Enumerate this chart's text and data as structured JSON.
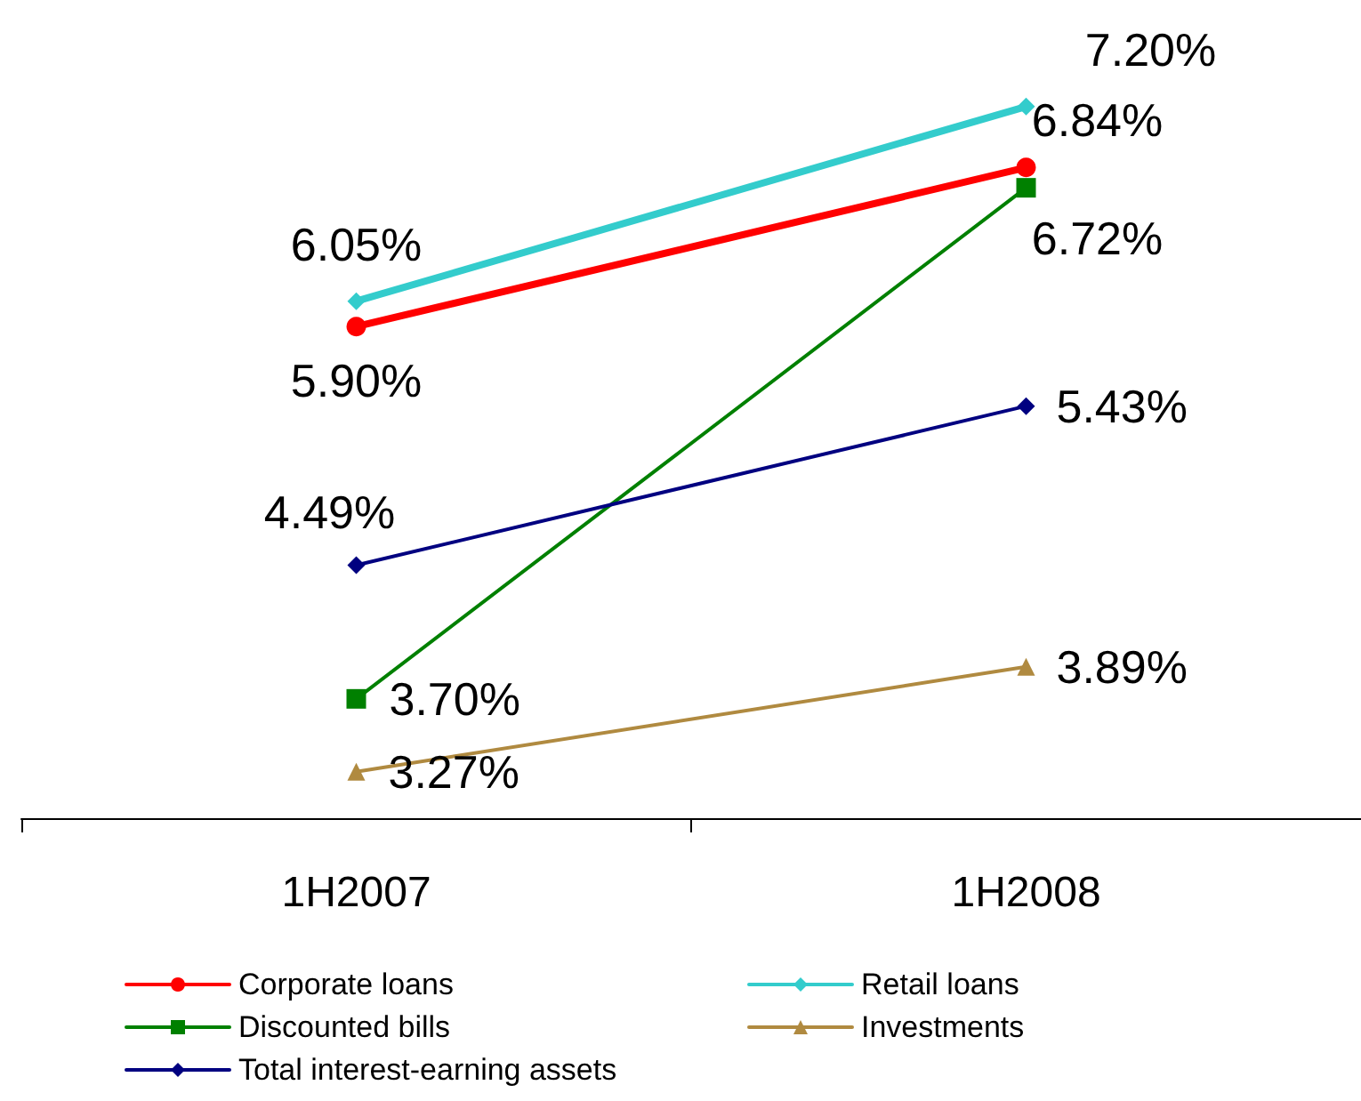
{
  "chart_data": {
    "type": "line",
    "categories": [
      "1H2007",
      "1H2008"
    ],
    "tick_labels": "x",
    "grid": false,
    "legend": "bottom",
    "series": [
      {
        "name": "Corporate loans",
        "color": "#ff0000",
        "marker": "circle",
        "values": [
          5.9,
          6.84
        ],
        "value_labels": [
          "5.90%",
          "6.84%"
        ]
      },
      {
        "name": "Retail loans",
        "color": "#33cccc",
        "marker": "diamond",
        "values": [
          6.05,
          7.2
        ],
        "value_labels": [
          "6.05%",
          "7.20%"
        ]
      },
      {
        "name": "Discounted bills",
        "color": "#008000",
        "marker": "square",
        "values": [
          3.7,
          6.72
        ],
        "value_labels": [
          "3.70%",
          "6.72%"
        ]
      },
      {
        "name": "Investments",
        "color": "#b08a40",
        "marker": "triangle",
        "values": [
          3.27,
          3.89
        ],
        "value_labels": [
          "3.27%",
          "3.89%"
        ]
      },
      {
        "name": "Total interest-earning assets",
        "color": "#000080",
        "marker": "diamond",
        "values": [
          4.49,
          5.43
        ],
        "value_labels": [
          "4.49%",
          "5.43%"
        ]
      }
    ]
  }
}
